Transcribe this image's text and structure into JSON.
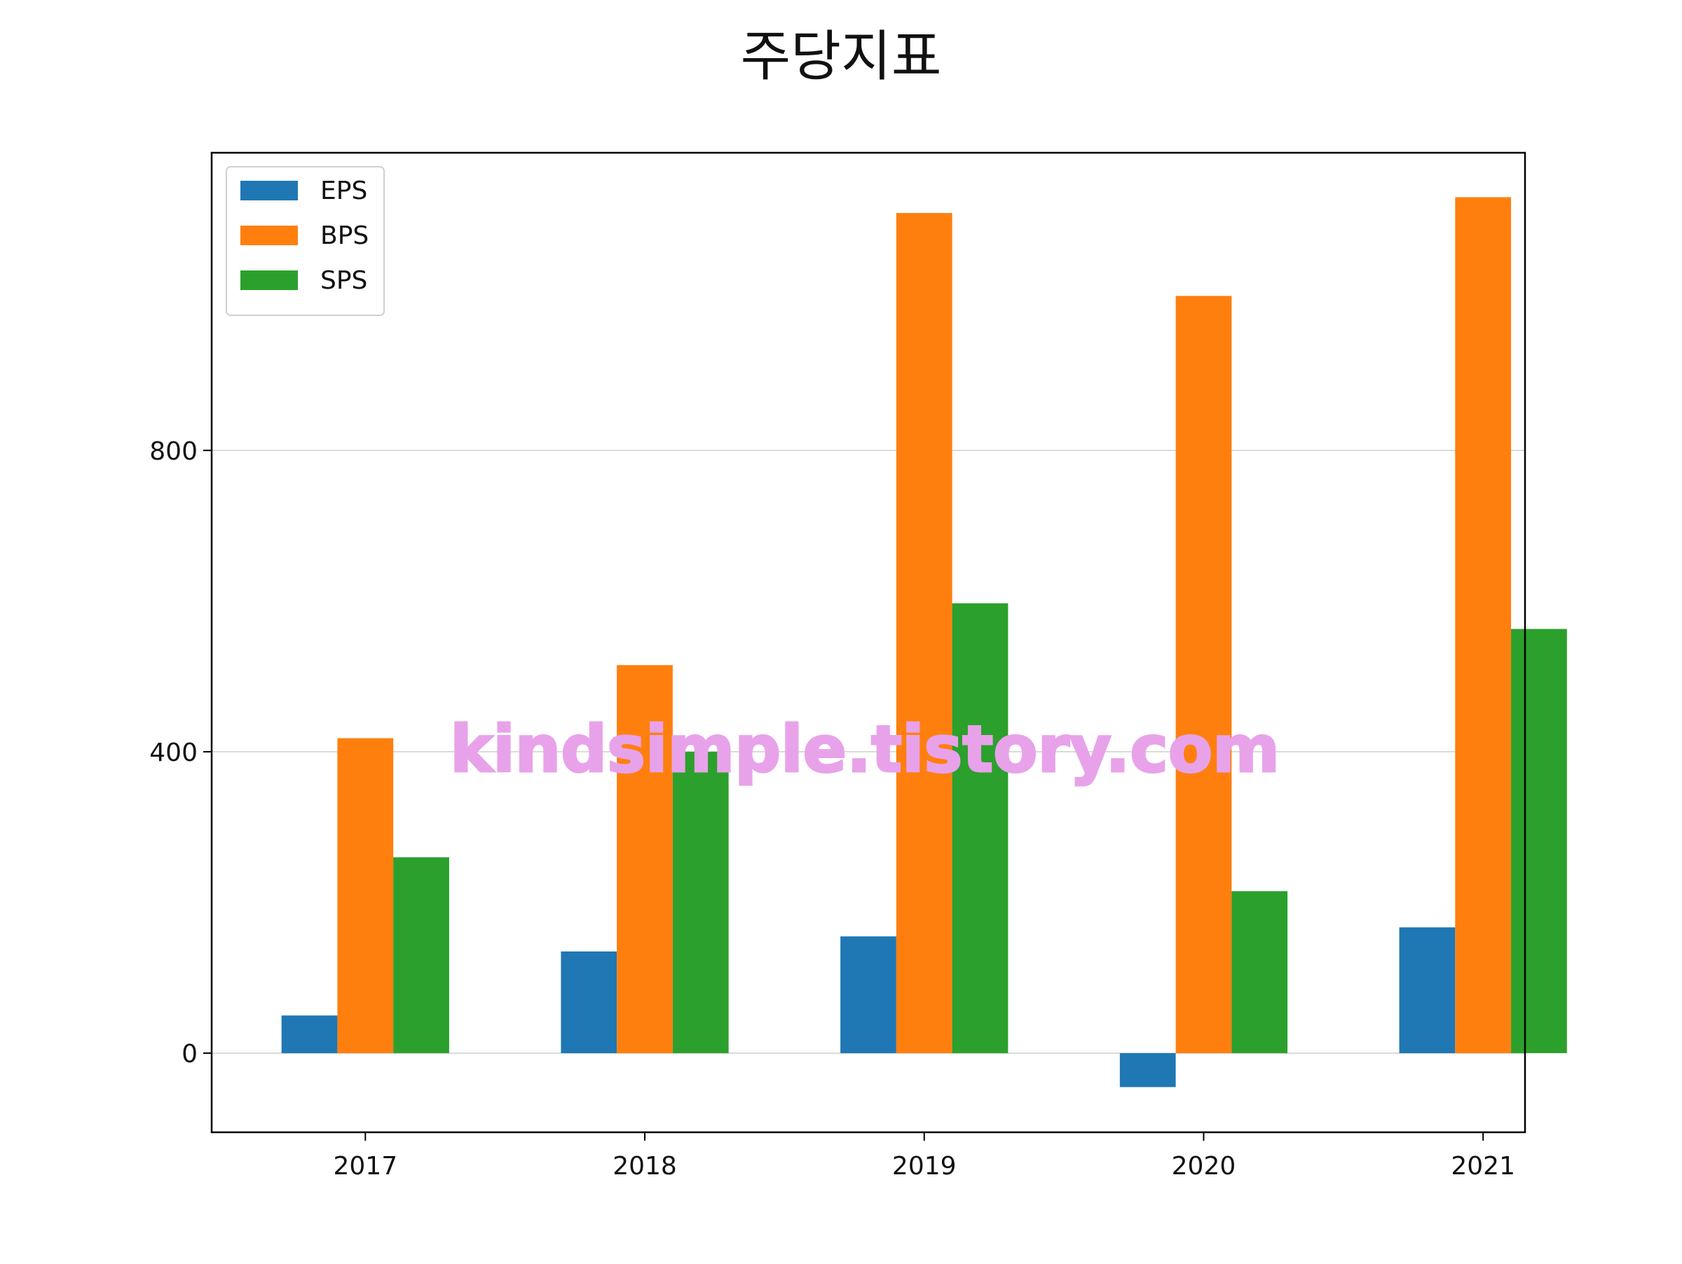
{
  "chart_data": {
    "type": "bar",
    "title": "주당지표",
    "xlabel": "",
    "ylabel": "",
    "categories": [
      "2017",
      "2018",
      "2019",
      "2020",
      "2021"
    ],
    "series": [
      {
        "name": "EPS",
        "color": "#1f77b4",
        "values": [
          50,
          135,
          155,
          -45,
          167
        ]
      },
      {
        "name": "BPS",
        "color": "#ff7f0e",
        "values": [
          418,
          515,
          1115,
          1005,
          1136
        ]
      },
      {
        "name": "SPS",
        "color": "#2ca02c",
        "values": [
          260,
          400,
          597,
          215,
          563
        ]
      }
    ],
    "yticks": [
      0,
      400,
      800
    ],
    "ylim": [
      -105,
      1195
    ],
    "grid": "y",
    "legend_position": "upper-left",
    "watermark": "kindsimple.tistory.com"
  }
}
